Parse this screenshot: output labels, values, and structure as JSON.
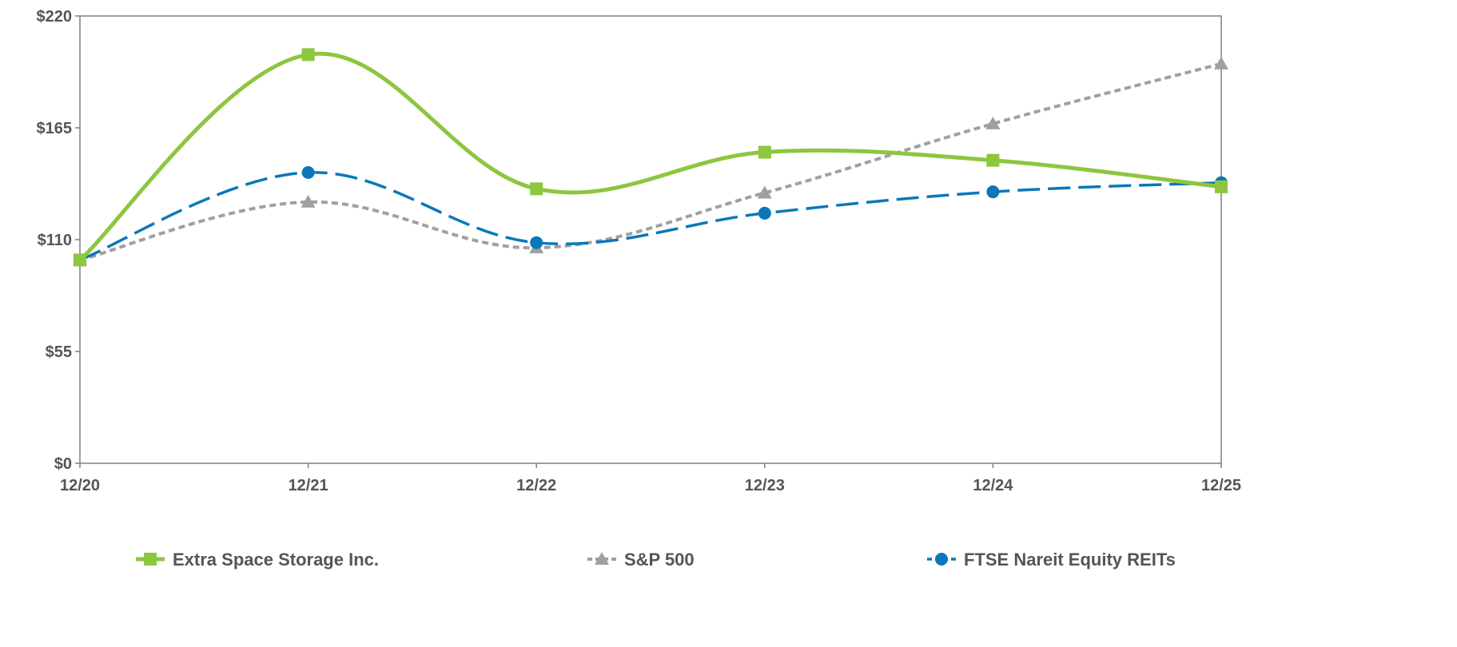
{
  "chart_data": {
    "type": "line",
    "title": "",
    "xlabel": "",
    "ylabel": "",
    "categories": [
      "12/20",
      "12/21",
      "12/22",
      "12/23",
      "12/24",
      "12/25"
    ],
    "ylim": [
      0,
      220
    ],
    "yticks": [
      0,
      55,
      110,
      165,
      220
    ],
    "ytick_labels": [
      "$0",
      "$55",
      "$110",
      "$165",
      "$220"
    ],
    "legend_position": "bottom",
    "grid": false,
    "series": [
      {
        "name": "Extra Space Storage Inc.",
        "color": "#8dc63f",
        "marker": "square",
        "dash": "solid",
        "values": [
          100,
          201,
          135,
          153,
          149,
          136
        ]
      },
      {
        "name": "S&P 500",
        "color": "#a0a0a0",
        "marker": "triangle",
        "dash": "dotted",
        "values": [
          100,
          128.5,
          106,
          133,
          167,
          196.5
        ]
      },
      {
        "name": "FTSE Nareit Equity REITs",
        "color": "#0a78b8",
        "marker": "circle",
        "dash": "dashed",
        "values": [
          100,
          143,
          108.5,
          123,
          133.5,
          138
        ]
      }
    ]
  }
}
